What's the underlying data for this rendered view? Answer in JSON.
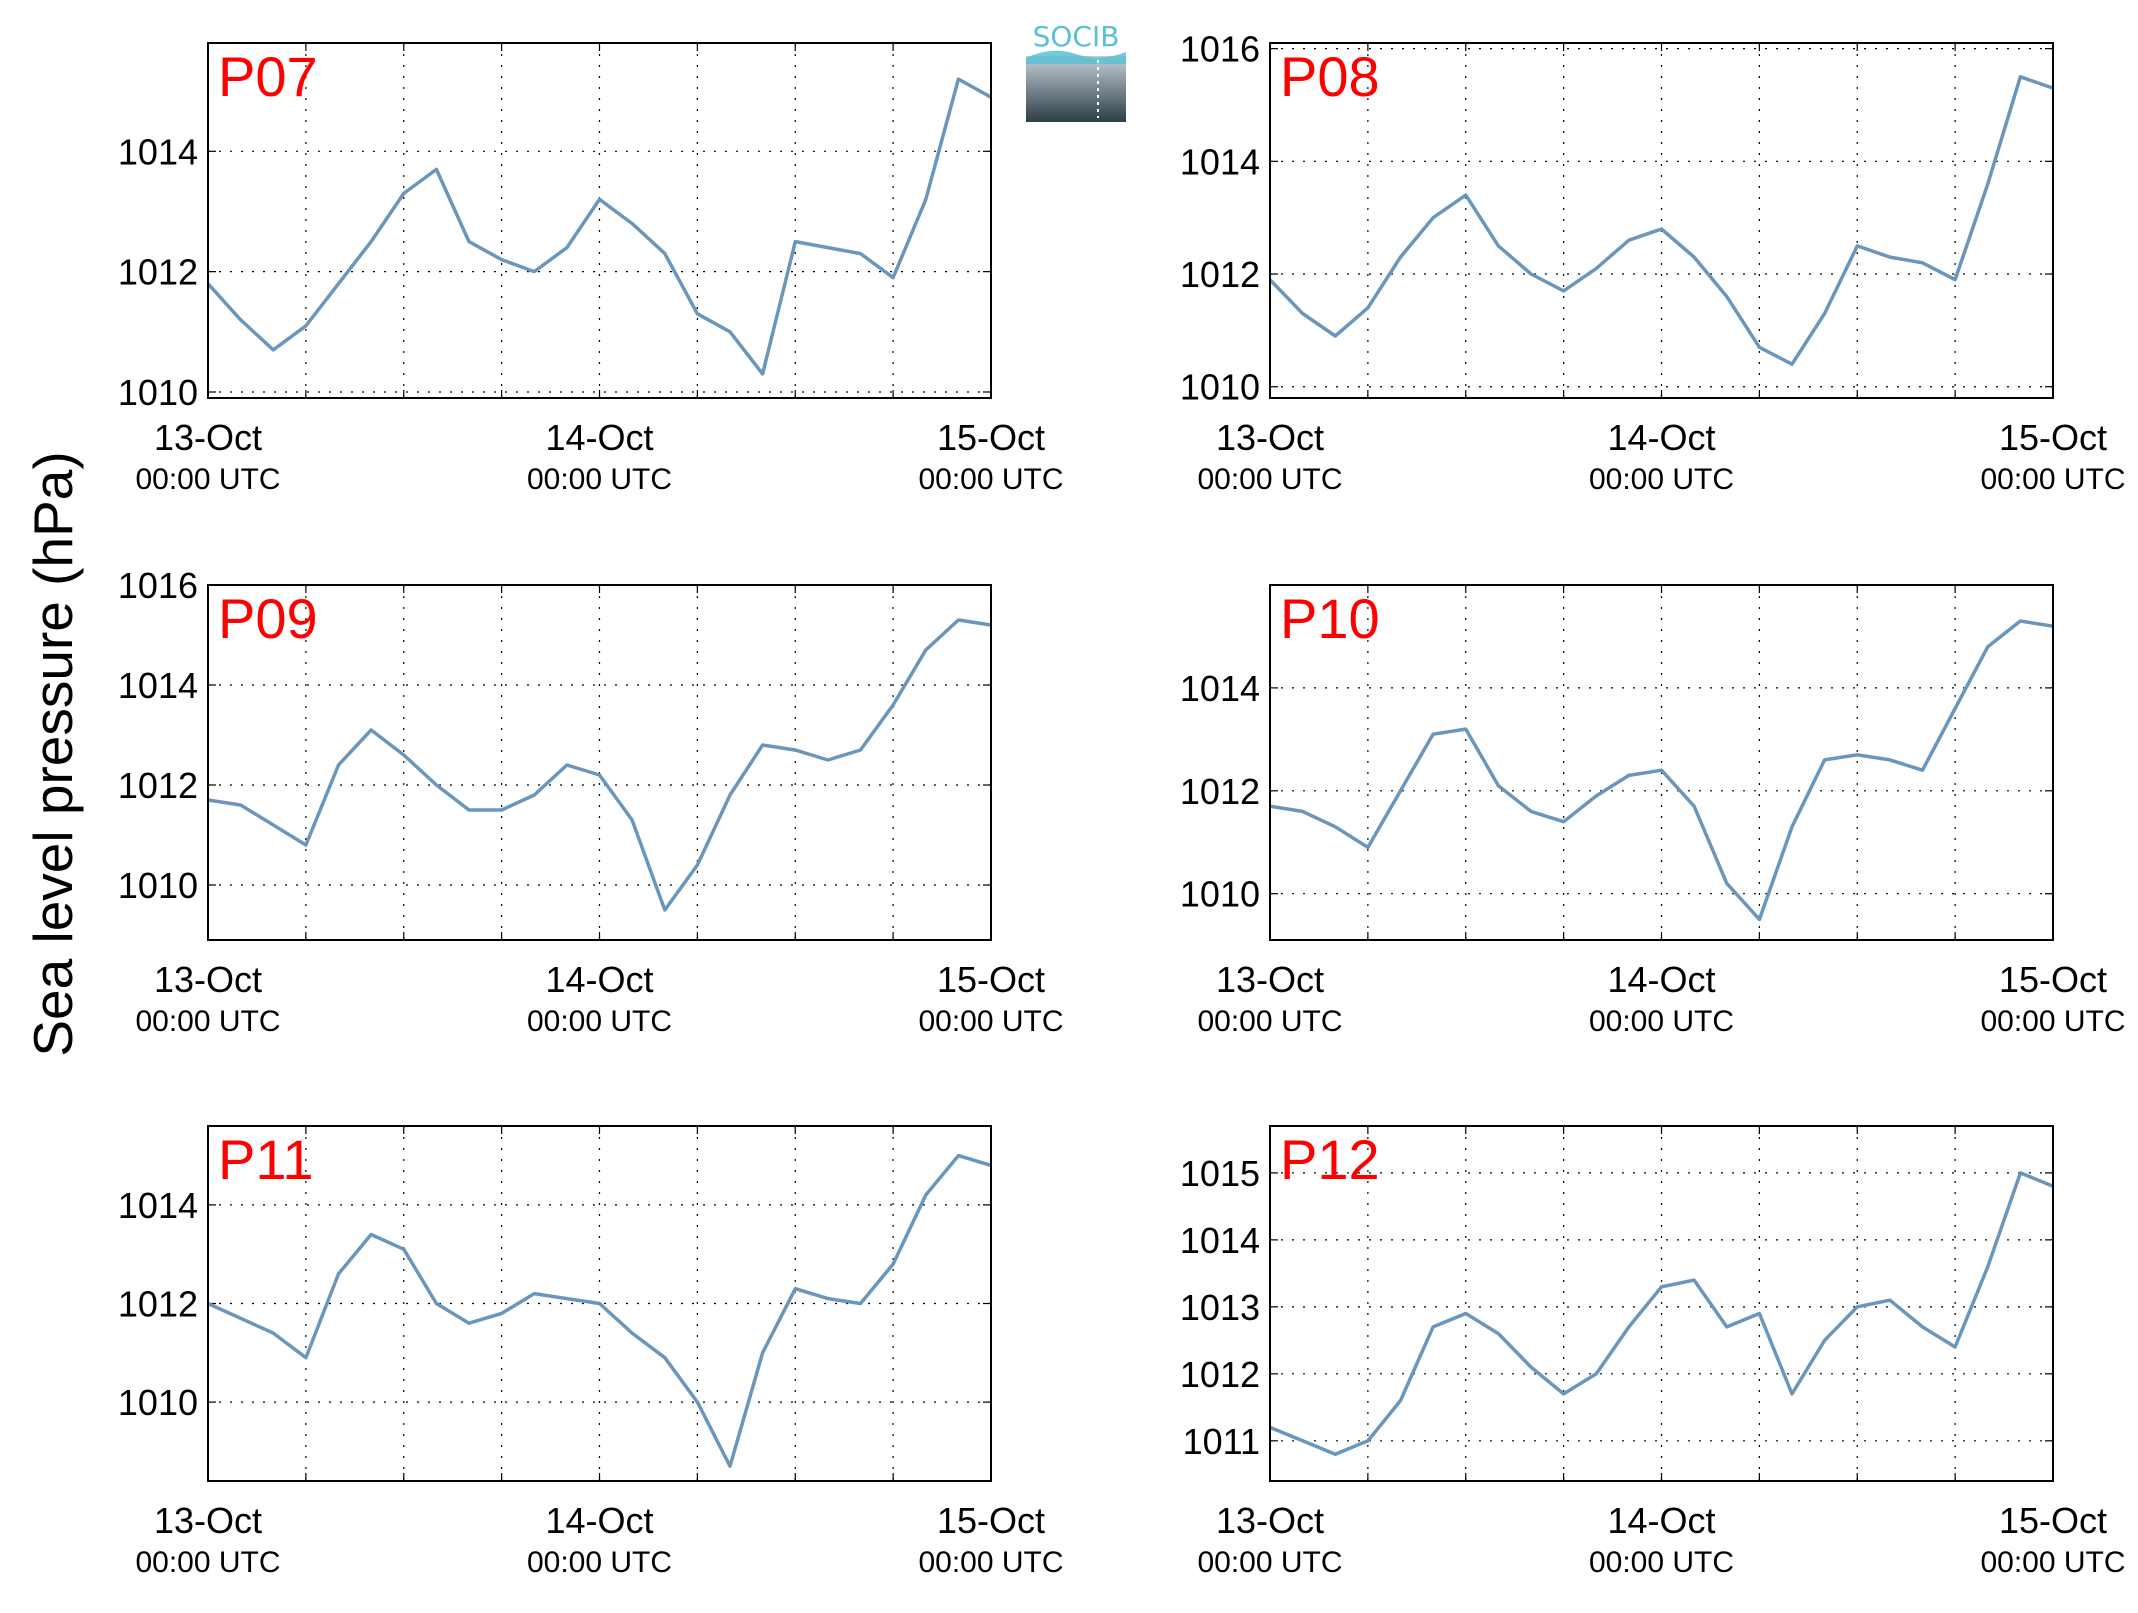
{
  "figure": {
    "ylabel": "Sea level pressure (hPa)",
    "logo_text": "SOCIB",
    "colors": {
      "line": "#6b96bb",
      "panel_label": "#ff0000",
      "axis": "#000000",
      "logo_text": "#5bc0d3",
      "logo_top": "#c5ced6",
      "logo_bottom": "#2c3e48"
    }
  },
  "chart_data": [
    {
      "type": "line",
      "panel_label": "P07",
      "grid": true,
      "xlim": [
        "13-Oct 00:00 UTC",
        "15-Oct 00:00 UTC"
      ],
      "xticks": [
        {
          "date": "13-Oct",
          "time": "00:00 UTC"
        },
        {
          "date": "14-Oct",
          "time": "00:00 UTC"
        },
        {
          "date": "15-Oct",
          "time": "00:00 UTC"
        }
      ],
      "ylim": [
        1009.9,
        1015.8
      ],
      "yticks": [
        1010,
        1012,
        1014
      ],
      "x_hours": [
        0,
        2,
        4,
        6,
        8,
        10,
        12,
        14,
        16,
        18,
        20,
        22,
        24,
        26,
        28,
        30,
        32,
        34,
        36,
        38,
        40,
        42,
        44,
        46,
        48
      ],
      "y": [
        1011.8,
        1011.2,
        1010.7,
        1011.1,
        1011.8,
        1012.5,
        1013.3,
        1013.7,
        1012.5,
        1012.2,
        1012.0,
        1012.4,
        1013.2,
        1012.8,
        1012.3,
        1011.3,
        1011.0,
        1010.3,
        1012.5,
        1012.4,
        1012.3,
        1011.9,
        1013.2,
        1015.2,
        1014.9
      ]
    },
    {
      "type": "line",
      "panel_label": "P08",
      "grid": true,
      "xlim": [
        "13-Oct 00:00 UTC",
        "15-Oct 00:00 UTC"
      ],
      "xticks": [
        {
          "date": "13-Oct",
          "time": "00:00 UTC"
        },
        {
          "date": "14-Oct",
          "time": "00:00 UTC"
        },
        {
          "date": "15-Oct",
          "time": "00:00 UTC"
        }
      ],
      "ylim": [
        1009.8,
        1016.1
      ],
      "yticks": [
        1010,
        1012,
        1014,
        1016
      ],
      "x_hours": [
        0,
        2,
        4,
        6,
        8,
        10,
        12,
        14,
        16,
        18,
        20,
        22,
        24,
        26,
        28,
        30,
        32,
        34,
        36,
        38,
        40,
        42,
        44,
        46,
        48
      ],
      "y": [
        1011.9,
        1011.3,
        1010.9,
        1011.4,
        1012.3,
        1013.0,
        1013.4,
        1012.5,
        1012.0,
        1011.7,
        1012.1,
        1012.6,
        1012.8,
        1012.3,
        1011.6,
        1010.7,
        1010.4,
        1011.3,
        1012.5,
        1012.3,
        1012.2,
        1011.9,
        1013.6,
        1015.5,
        1015.3
      ]
    },
    {
      "type": "line",
      "panel_label": "P09",
      "grid": true,
      "xlim": [
        "13-Oct 00:00 UTC",
        "15-Oct 00:00 UTC"
      ],
      "xticks": [
        {
          "date": "13-Oct",
          "time": "00:00 UTC"
        },
        {
          "date": "14-Oct",
          "time": "00:00 UTC"
        },
        {
          "date": "15-Oct",
          "time": "00:00 UTC"
        }
      ],
      "ylim": [
        1008.9,
        1016.0
      ],
      "yticks": [
        1010,
        1012,
        1014,
        1016
      ],
      "x_hours": [
        0,
        2,
        4,
        6,
        8,
        10,
        12,
        14,
        16,
        18,
        20,
        22,
        24,
        26,
        28,
        30,
        32,
        34,
        36,
        38,
        40,
        42,
        44,
        46,
        48
      ],
      "y": [
        1011.7,
        1011.6,
        1011.2,
        1010.8,
        1012.4,
        1013.1,
        1012.6,
        1012.0,
        1011.5,
        1011.5,
        1011.8,
        1012.4,
        1012.2,
        1011.3,
        1009.5,
        1010.4,
        1011.8,
        1012.8,
        1012.7,
        1012.5,
        1012.7,
        1013.6,
        1014.7,
        1015.3,
        1015.2
      ]
    },
    {
      "type": "line",
      "panel_label": "P10",
      "grid": true,
      "xlim": [
        "13-Oct 00:00 UTC",
        "15-Oct 00:00 UTC"
      ],
      "xticks": [
        {
          "date": "13-Oct",
          "time": "00:00 UTC"
        },
        {
          "date": "14-Oct",
          "time": "00:00 UTC"
        },
        {
          "date": "15-Oct",
          "time": "00:00 UTC"
        }
      ],
      "ylim": [
        1009.1,
        1016.0
      ],
      "yticks": [
        1010,
        1012,
        1014
      ],
      "x_hours": [
        0,
        2,
        4,
        6,
        8,
        10,
        12,
        14,
        16,
        18,
        20,
        22,
        24,
        26,
        28,
        30,
        32,
        34,
        36,
        38,
        40,
        42,
        44,
        46,
        48
      ],
      "y": [
        1011.7,
        1011.6,
        1011.3,
        1010.9,
        1012.0,
        1013.1,
        1013.2,
        1012.1,
        1011.6,
        1011.4,
        1011.9,
        1012.3,
        1012.4,
        1011.7,
        1010.2,
        1009.5,
        1011.3,
        1012.6,
        1012.7,
        1012.6,
        1012.4,
        1013.6,
        1014.8,
        1015.3,
        1015.2
      ]
    },
    {
      "type": "line",
      "panel_label": "P11",
      "grid": true,
      "xlim": [
        "13-Oct 00:00 UTC",
        "15-Oct 00:00 UTC"
      ],
      "xticks": [
        {
          "date": "13-Oct",
          "time": "00:00 UTC"
        },
        {
          "date": "14-Oct",
          "time": "00:00 UTC"
        },
        {
          "date": "15-Oct",
          "time": "00:00 UTC"
        }
      ],
      "ylim": [
        1008.4,
        1015.6
      ],
      "yticks": [
        1010,
        1012,
        1014
      ],
      "x_hours": [
        0,
        2,
        4,
        6,
        8,
        10,
        12,
        14,
        16,
        18,
        20,
        22,
        24,
        26,
        28,
        30,
        32,
        34,
        36,
        38,
        40,
        42,
        44,
        46,
        48
      ],
      "y": [
        1012.0,
        1011.7,
        1011.4,
        1010.9,
        1012.6,
        1013.4,
        1013.1,
        1012.0,
        1011.6,
        1011.8,
        1012.2,
        1012.1,
        1012.0,
        1011.4,
        1010.9,
        1010.0,
        1008.7,
        1011.0,
        1012.3,
        1012.1,
        1012.0,
        1012.8,
        1014.2,
        1015.0,
        1014.8
      ]
    },
    {
      "type": "line",
      "panel_label": "P12",
      "grid": true,
      "xlim": [
        "13-Oct 00:00 UTC",
        "15-Oct 00:00 UTC"
      ],
      "xticks": [
        {
          "date": "13-Oct",
          "time": "00:00 UTC"
        },
        {
          "date": "14-Oct",
          "time": "00:00 UTC"
        },
        {
          "date": "15-Oct",
          "time": "00:00 UTC"
        }
      ],
      "ylim": [
        1010.4,
        1015.7
      ],
      "yticks": [
        1011,
        1012,
        1013,
        1014,
        1015
      ],
      "x_hours": [
        0,
        2,
        4,
        6,
        8,
        10,
        12,
        14,
        16,
        18,
        20,
        22,
        24,
        26,
        28,
        30,
        32,
        34,
        36,
        38,
        40,
        42,
        44,
        46,
        48
      ],
      "y": [
        1011.2,
        1011.0,
        1010.8,
        1011.0,
        1011.6,
        1012.7,
        1012.9,
        1012.6,
        1012.1,
        1011.7,
        1012.0,
        1012.7,
        1013.3,
        1013.4,
        1012.7,
        1012.9,
        1011.7,
        1012.5,
        1013.0,
        1013.1,
        1012.7,
        1012.4,
        1013.6,
        1015.0,
        1014.8
      ]
    }
  ]
}
